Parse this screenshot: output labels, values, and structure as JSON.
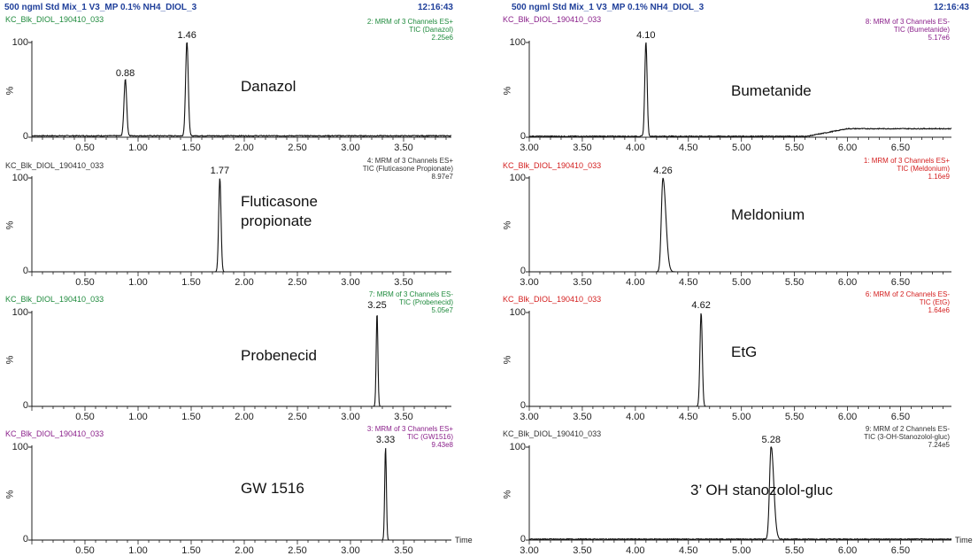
{
  "header": {
    "left_title": "500 ngml Std Mix_1 V3_MP 0.1% NH4_DIOL_3",
    "left_time": "12:16:43",
    "right_title": "500 ngml Std Mix_1 V3_MP 0.1% NH4_DIOL_3",
    "right_time": "12:16:43"
  },
  "colors": {
    "title": "#1f3f9a",
    "trace": "#111111",
    "green": "#1e8a3c",
    "purple": "#8a1f8a",
    "red": "#d42020",
    "black": "#333333"
  },
  "chart_data": [
    {
      "type": "line",
      "sample": "KC_Blk_DIOL_190410_033",
      "sample_color": "#1e8a3c",
      "info": [
        "2: MRM of 3 Channels ES+",
        "TIC (Danazol)",
        "2.25e6"
      ],
      "info_color": "#1e8a3c",
      "compound": [
        "Danazol"
      ],
      "xlim": [
        0,
        3.95
      ],
      "xticks": [
        "0.50",
        "1.00",
        "1.50",
        "2.00",
        "2.50",
        "3.00",
        "3.50"
      ],
      "yticks": [
        "100",
        "%",
        "0"
      ],
      "xlabel": "",
      "baseline": 1.5,
      "peaks": [
        {
          "label": "0.88",
          "x": 0.88,
          "height": 60,
          "width": 0.025
        },
        {
          "label": "1.46",
          "x": 1.46,
          "height": 100,
          "width": 0.025
        }
      ]
    },
    {
      "type": "line",
      "sample": "KC_Blk_DIOL_190410_033",
      "sample_color": "#333333",
      "info": [
        "4: MRM of 3 Channels ES+",
        "TIC (Fluticasone Propionate)",
        "8.97e7"
      ],
      "info_color": "#333333",
      "compound": [
        "Fluticasone",
        "propionate"
      ],
      "xlim": [
        0,
        3.95
      ],
      "xticks": [
        "0.50",
        "1.00",
        "1.50",
        "2.00",
        "2.50",
        "3.00",
        "3.50"
      ],
      "yticks": [
        "100",
        "%",
        "0"
      ],
      "xlabel": "",
      "baseline": 0,
      "peaks": [
        {
          "label": "1.77",
          "x": 1.77,
          "height": 100,
          "width": 0.022
        }
      ]
    },
    {
      "type": "line",
      "sample": "KC_Blk_DIOL_190410_033",
      "sample_color": "#1e8a3c",
      "info": [
        "7: MRM of 3 Channels ES-",
        "TIC (Probenecid)",
        "5.05e7"
      ],
      "info_color": "#1e8a3c",
      "compound": [
        "Probenecid"
      ],
      "xlim": [
        0,
        3.95
      ],
      "xticks": [
        "0.50",
        "1.00",
        "1.50",
        "2.00",
        "2.50",
        "3.00",
        "3.50"
      ],
      "yticks": [
        "100",
        "%",
        "0"
      ],
      "xlabel": "",
      "baseline": 0,
      "peaks": [
        {
          "label": "3.25",
          "x": 3.25,
          "height": 100,
          "width": 0.016
        }
      ]
    },
    {
      "type": "line",
      "sample": "KC_Blk_DIOL_190410_033",
      "sample_color": "#8a1f8a",
      "info": [
        "3: MRM of 3 Channels ES+",
        "TIC (GW1516)",
        "9.43e8"
      ],
      "info_color": "#8a1f8a",
      "compound": [
        "GW 1516"
      ],
      "xlim": [
        0,
        3.95
      ],
      "xticks": [
        "0.50",
        "1.00",
        "1.50",
        "2.00",
        "2.50",
        "3.00",
        "3.50"
      ],
      "yticks": [
        "100",
        "%",
        "0"
      ],
      "xlabel": "Time",
      "baseline": 0,
      "peaks": [
        {
          "label": "3.33",
          "x": 3.33,
          "height": 100,
          "width": 0.016
        }
      ]
    },
    {
      "type": "line",
      "sample": "KC_Blk_DIOL_190410_033",
      "sample_color": "#8a1f8a",
      "info": [
        "8: MRM of 3 Channels ES-",
        "TIC (Bumetanide)",
        "5.17e6"
      ],
      "info_color": "#8a1f8a",
      "compound": [
        "Bumetanide"
      ],
      "xlim": [
        3.0,
        6.98
      ],
      "xticks": [
        "3.00",
        "3.50",
        "4.00",
        "4.50",
        "5.00",
        "5.50",
        "6.00",
        "6.50"
      ],
      "yticks": [
        "100",
        "%",
        "0"
      ],
      "xlabel": "",
      "baseline": 1,
      "drift": {
        "start": 5.62,
        "end": 6.0,
        "level": 9
      },
      "peaks": [
        {
          "label": "4.10",
          "x": 4.1,
          "height": 100,
          "width": 0.022
        }
      ]
    },
    {
      "type": "line",
      "sample": "KC_Blk_DIOL_190410_033",
      "sample_color": "#d42020",
      "info": [
        "1: MRM of 3 Channels ES+",
        "TIC (Meldonium)",
        "1.16e9"
      ],
      "info_color": "#d42020",
      "compound": [
        "Meldonium"
      ],
      "xlim": [
        3.0,
        6.98
      ],
      "xticks": [
        "3.00",
        "3.50",
        "4.00",
        "4.50",
        "5.00",
        "5.50",
        "6.00",
        "6.50"
      ],
      "yticks": [
        "100",
        "%",
        "0"
      ],
      "xlabel": "",
      "baseline": 0,
      "peaks": [
        {
          "label": "4.26",
          "x": 4.26,
          "height": 100,
          "width": 0.03,
          "tail": 0.08
        }
      ]
    },
    {
      "type": "line",
      "sample": "KC_Blk_DIOL_190410_033",
      "sample_color": "#d42020",
      "info": [
        "6: MRM of 2 Channels ES-",
        "TIC (EtG)",
        "1.64e6"
      ],
      "info_color": "#d42020",
      "compound": [
        "EtG"
      ],
      "xlim": [
        3.0,
        6.98
      ],
      "xticks": [
        "3.00",
        "3.50",
        "4.00",
        "4.50",
        "5.00",
        "5.50",
        "6.00",
        "6.50"
      ],
      "yticks": [
        "100",
        "%",
        "0"
      ],
      "xlabel": "",
      "baseline": 0,
      "peaks": [
        {
          "label": "4.62",
          "x": 4.62,
          "height": 100,
          "width": 0.022
        }
      ]
    },
    {
      "type": "line",
      "sample": "KC_Blk_DIOL_190410_033",
      "sample_color": "#333333",
      "info": [
        "9: MRM of 2 Channels ES-",
        "TIC (3-OH-Stanozolol-gluc)",
        "7.24e5"
      ],
      "info_color": "#333333",
      "compound": [
        "3’ OH stanozolol-gluc"
      ],
      "xlim": [
        3.0,
        6.98
      ],
      "xticks": [
        "3.00",
        "3.50",
        "4.00",
        "4.50",
        "5.00",
        "5.50",
        "6.00",
        "6.50"
      ],
      "yticks": [
        "100",
        "%",
        "0"
      ],
      "xlabel": "Time",
      "baseline": 1,
      "peaks": [
        {
          "label": "5.28",
          "x": 5.28,
          "height": 100,
          "width": 0.03,
          "tail": 0.07
        }
      ]
    }
  ]
}
